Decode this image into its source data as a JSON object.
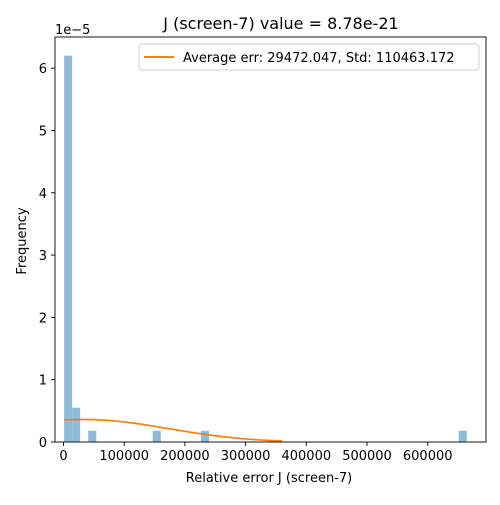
{
  "chart_data": {
    "type": "bar",
    "title": "J (screen-7) value = 8.78e-21",
    "xlabel": "Relative error J (screen-7)",
    "ylabel": "Frequency",
    "y_offset_label": "1e−5",
    "xlim": [
      -14000,
      696000
    ],
    "ylim": [
      0,
      6.5
    ],
    "x_ticks": [
      0,
      100000,
      200000,
      300000,
      400000,
      500000,
      600000
    ],
    "x_tick_labels": [
      "0",
      "100000",
      "200000",
      "300000",
      "400000",
      "500000",
      "600000"
    ],
    "y_ticks": [
      0,
      1,
      2,
      3,
      4,
      5,
      6
    ],
    "y_tick_labels": [
      "0",
      "1",
      "2",
      "3",
      "4",
      "5",
      "6"
    ],
    "grid": false,
    "legend_position": "top-right",
    "histogram": {
      "bin_width": 13250,
      "bins": [
        {
          "x_start": 1000,
          "value": 6.2
        },
        {
          "x_start": 14250,
          "value": 0.55
        },
        {
          "x_start": 40750,
          "value": 0.18
        },
        {
          "x_start": 147000,
          "value": 0.18
        },
        {
          "x_start": 226500,
          "value": 0.18
        },
        {
          "x_start": 651000,
          "value": 0.18
        }
      ],
      "color": "#8fbbd9"
    },
    "series": [
      {
        "name": "Average err: 29472.047, Std: 110463.172",
        "type": "line",
        "color": "#ff7f0e",
        "x": [
          1000,
          20000,
          40000,
          60000,
          80000,
          100000,
          120000,
          140000,
          160000,
          180000,
          200000,
          220000,
          240000,
          260000,
          280000,
          300000,
          320000,
          340000,
          360000
        ],
        "y": [
          0.355,
          0.36,
          0.361,
          0.355,
          0.342,
          0.322,
          0.297,
          0.268,
          0.236,
          0.204,
          0.172,
          0.141,
          0.113,
          0.088,
          0.067,
          0.049,
          0.035,
          0.024,
          0.016
        ]
      }
    ]
  }
}
